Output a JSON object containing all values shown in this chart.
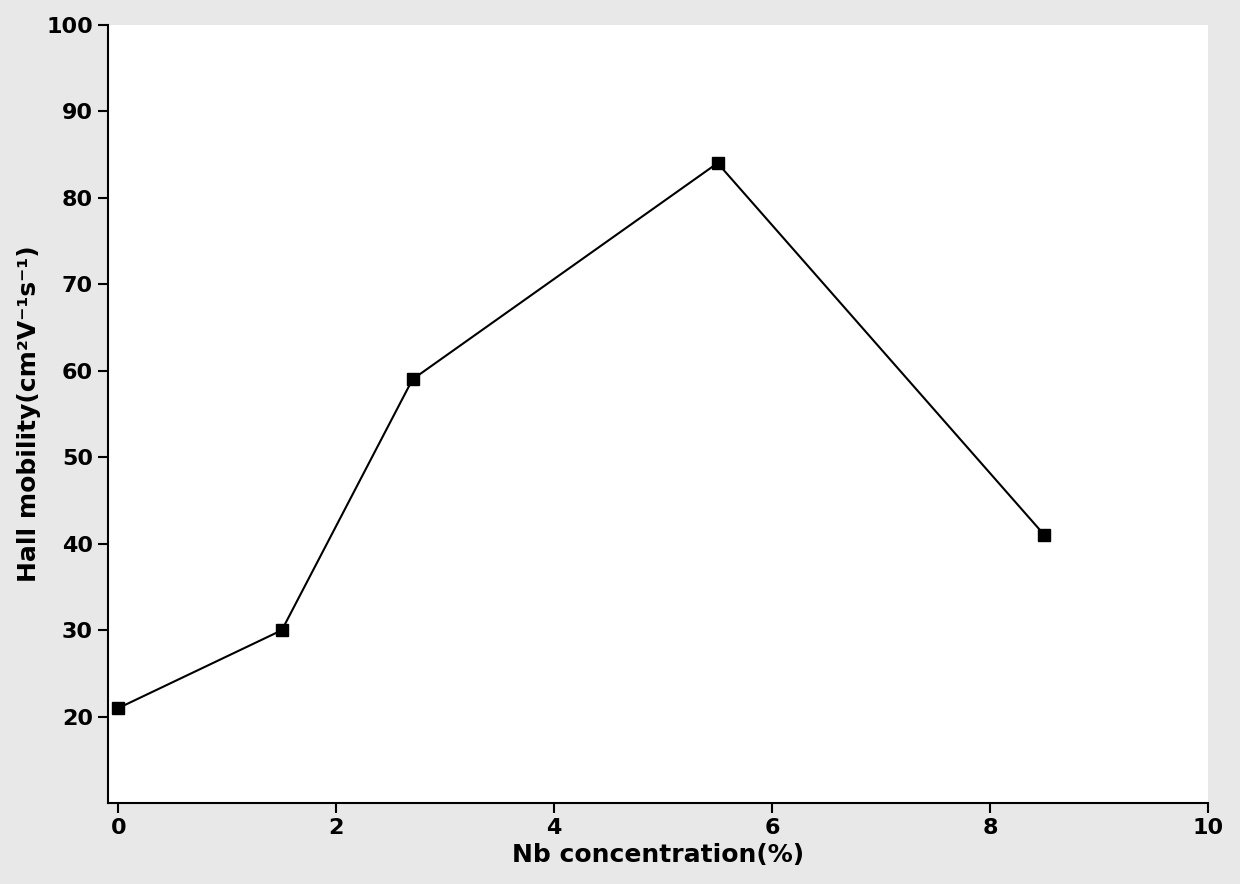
{
  "x": [
    0,
    1.5,
    2.7,
    5.5,
    8.5
  ],
  "y": [
    21,
    30,
    59,
    84,
    41
  ],
  "xlabel": "Nb concentration(%)",
  "ylabel": "Hall mobility(cm²V⁻¹s⁻¹)",
  "xlim": [
    -0.1,
    10
  ],
  "ylim": [
    10,
    100
  ],
  "xticks": [
    0,
    2,
    4,
    6,
    8,
    10
  ],
  "yticks": [
    20,
    30,
    40,
    50,
    60,
    70,
    80,
    90,
    100
  ],
  "line_color": "#000000",
  "marker": "s",
  "marker_color": "#000000",
  "marker_size": 8,
  "line_width": 1.5,
  "xlabel_fontsize": 18,
  "ylabel_fontsize": 18,
  "tick_fontsize": 16,
  "background_color": "#ffffff",
  "figure_background": "#e8e8e8"
}
